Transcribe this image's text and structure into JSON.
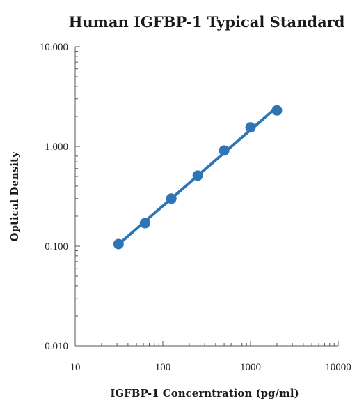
{
  "chart_data": {
    "type": "scatter",
    "title": "Human IGFBP-1 Typical Standard",
    "xlabel": "IGFBP-1 Concerntration (pg/ml)",
    "ylabel": "Optical Density",
    "x_scale": "log",
    "y_scale": "log",
    "xlim": [
      10,
      10000
    ],
    "ylim": [
      0.01,
      10
    ],
    "x_ticks": [
      {
        "value": 10,
        "label": "10"
      },
      {
        "value": 100,
        "label": "100"
      },
      {
        "value": 1000,
        "label": "1000"
      },
      {
        "value": 10000,
        "label": "10000"
      }
    ],
    "y_ticks": [
      {
        "value": 0.01,
        "label": "0.010"
      },
      {
        "value": 0.1,
        "label": "0.100"
      },
      {
        "value": 1,
        "label": "1.000"
      },
      {
        "value": 10,
        "label": "10.000"
      }
    ],
    "grid": false,
    "series": [
      {
        "x": [
          31.25,
          62.5,
          125,
          250,
          500,
          1000,
          2000
        ],
        "y": [
          0.105,
          0.17,
          0.3,
          0.51,
          0.91,
          1.55,
          2.3
        ],
        "trendline": true
      }
    ],
    "colors": {
      "marker": "#2e75b6",
      "line": "#2e75b6",
      "axis": "#555555"
    }
  }
}
